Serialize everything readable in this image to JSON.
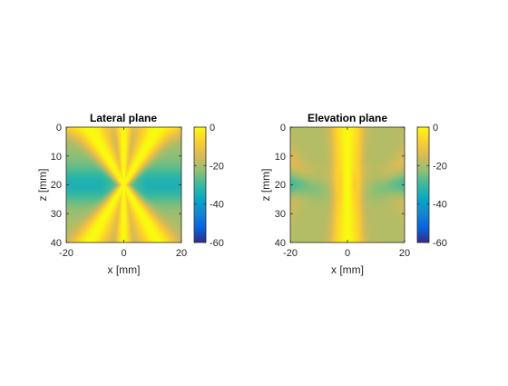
{
  "colors": {
    "colormap": "parula",
    "parula_stops": [
      "#352a87",
      "#0363e1",
      "#1485d4",
      "#06a7c6",
      "#38b99e",
      "#92bf73",
      "#d9ba56",
      "#fcce2e",
      "#f9fb0e"
    ],
    "axes_frame": "#262626"
  },
  "chart_data": [
    {
      "type": "heatmap",
      "title": "Lateral plane",
      "xlabel": "x [mm]",
      "ylabel": "z [mm]",
      "xlim": [
        -20,
        20
      ],
      "ylim": [
        0,
        40
      ],
      "y_reversed": true,
      "xticks": [
        -20,
        0,
        20
      ],
      "yticks": [
        0,
        10,
        20,
        30,
        40
      ],
      "colorbar": {
        "clim": [
          -60,
          0
        ],
        "ticks": [
          0,
          -20,
          -40,
          -60
        ]
      },
      "focus_depth": 20,
      "values_description_db": [
        {
          "region": "converging X-shaped beam lobes through focus at (0, 20)",
          "value": 0
        },
        {
          "region": "near-field corners (z 0-5)",
          "value": -8
        },
        {
          "region": "side regions at focal depth (x ±15, z 20)",
          "value": -30
        },
        {
          "region": "far-field sides (z 30-40)",
          "value": -22
        }
      ]
    },
    {
      "type": "heatmap",
      "title": "Elevation plane",
      "xlabel": "x [mm]",
      "ylabel": "z [mm]",
      "xlim": [
        -20,
        20
      ],
      "ylim": [
        0,
        40
      ],
      "y_reversed": true,
      "xticks": [
        -20,
        0,
        20
      ],
      "yticks": [
        0,
        10,
        20,
        30,
        40
      ],
      "colorbar": {
        "clim": [
          -60,
          0
        ],
        "ticks": [
          0,
          -20,
          -40,
          -60
        ]
      },
      "focus_depth": 20,
      "values_description_db": [
        {
          "region": "narrow central beam (x -2..2)",
          "value": 0
        },
        {
          "region": "background side lobes",
          "value": -20
        },
        {
          "region": "side regions at focal depth (x ±15, z 20)",
          "value": -32
        },
        {
          "region": "arc-shaped side lobe bands",
          "value": -15
        }
      ]
    }
  ]
}
